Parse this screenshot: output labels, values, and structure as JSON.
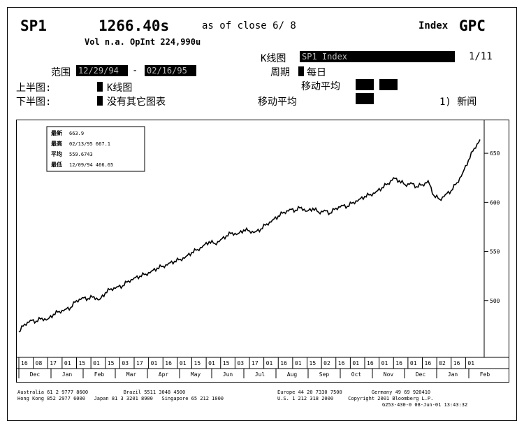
{
  "header": {
    "ticker": "SP1",
    "price": "1266.40s",
    "as_of": "as of close  6/ 8",
    "index_label": "Index",
    "code": "GPC",
    "vol_line": "Vol n.a. OpInt 224,990u"
  },
  "controls": {
    "kline_label": "K线图",
    "kline_value": "SP1 Index",
    "page": "1/11",
    "range_label": "范围",
    "range_from": "12/29/94",
    "range_sep": "-",
    "range_to": "02/16/95",
    "period_label": "周期",
    "period_value": "每日",
    "ma_label_top": "移动平均",
    "upper_label": "上半图:",
    "upper_value": "K线图",
    "lower_label": "下半图:",
    "lower_value": "没有其它图表",
    "ma_label_bottom": "移动平均",
    "news": "1) 新闻"
  },
  "stats": {
    "latest_label": "最新",
    "latest_value": "663.9",
    "high_label": "最高",
    "high_value": "02/13/95 667.1",
    "avg_label": "平均",
    "avg_value": "559.6743",
    "low_label": "最低",
    "low_value": "12/09/94 466.65"
  },
  "chart_data": {
    "type": "line",
    "title": "",
    "xlabel": "",
    "ylabel": "",
    "ylim": [
      445,
      680
    ],
    "y_ticks": [
      {
        "label": "650",
        "value": 650
      },
      {
        "label": "600",
        "value": 600
      },
      {
        "label": "550",
        "value": 550
      },
      {
        "label": "500",
        "value": 500
      }
    ],
    "x_day_labels": [
      "16",
      "08",
      "17",
      "01",
      "15",
      "01",
      "15",
      "03",
      "17",
      "01",
      "16",
      "01",
      "15",
      "01",
      "15",
      "03",
      "17",
      "01",
      "16",
      "01",
      "15",
      "02",
      "16",
      "01",
      "16",
      "01",
      "16",
      "01",
      "16",
      "02",
      "16",
      "01"
    ],
    "x_month_labels": [
      "Dec",
      "Jan",
      "Feb",
      "Mar",
      "Apr",
      "May",
      "Jun",
      "Jul",
      "Aug",
      "Sep",
      "Oct",
      "Nov",
      "Dec",
      "Jan",
      "Feb"
    ],
    "x": [
      0,
      1,
      2,
      3,
      4,
      5,
      6,
      7,
      8,
      9,
      10,
      11,
      12,
      13,
      14,
      15,
      16,
      17,
      18,
      19,
      20,
      21,
      22,
      23,
      24,
      25,
      26,
      27,
      28,
      29,
      30,
      31,
      32,
      33,
      34,
      35,
      36,
      37,
      38,
      39,
      40,
      41,
      42,
      43,
      44,
      45,
      46,
      47,
      48,
      49,
      50,
      51,
      52,
      53,
      54,
      55,
      56,
      57,
      58,
      59,
      60,
      61,
      62,
      63,
      64,
      65,
      66,
      67,
      68,
      69,
      70,
      71,
      72,
      73,
      74,
      75,
      76,
      77,
      78,
      79,
      80
    ],
    "values": [
      468,
      476,
      480,
      479,
      482,
      481,
      486,
      489,
      491,
      493,
      500,
      503,
      502,
      504,
      501,
      508,
      512,
      514,
      515,
      520,
      523,
      525,
      527,
      530,
      533,
      535,
      538,
      540,
      542,
      545,
      549,
      552,
      556,
      560,
      558,
      562,
      566,
      569,
      568,
      572,
      571,
      570,
      573,
      578,
      582,
      586,
      590,
      593,
      592,
      595,
      591,
      594,
      590,
      592,
      589,
      594,
      597,
      596,
      600,
      603,
      606,
      608,
      611,
      615,
      619,
      625,
      622,
      618,
      620,
      616,
      618,
      622,
      607,
      603,
      608,
      612,
      620,
      630,
      643,
      655,
      664
    ]
  },
  "footer": {
    "left_line1": "Australia 61 2 9777 8600            Brazil 5511 3048 4500",
    "left_line2": "Hong Kong 852 2977 6000   Japan 81 3 3201 8900   Singapore 65 212 1000",
    "right_line1": "Europe 44 20 7330 7500          Germany 49 69 920410",
    "right_line2": "U.S. 1 212 318 2000     Copyright 2001 Bloomberg L.P.",
    "right_line3": "G253-430-0 08-Jun-01 13:43:32"
  }
}
